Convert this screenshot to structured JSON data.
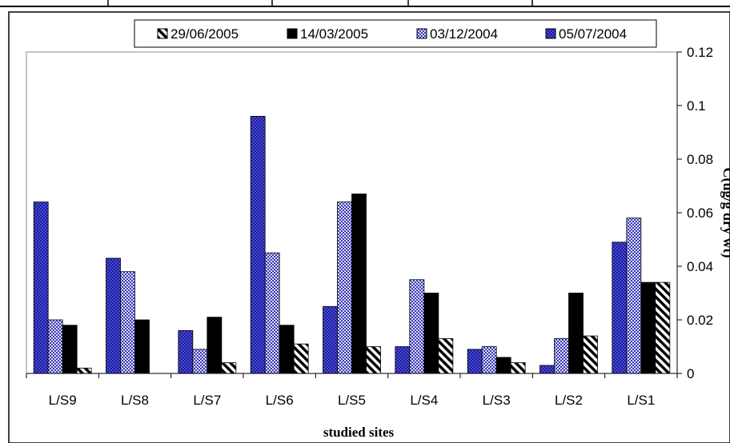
{
  "chart_data": {
    "type": "bar",
    "xlabel": "studied sites",
    "ylabel": "C(ug/g dry wt)",
    "ylim": [
      0,
      0.12
    ],
    "yticks": [
      "0",
      "0.02",
      "0.04",
      "0.06",
      "0.08",
      "0.1",
      "0.12"
    ],
    "categories": [
      "L/S9",
      "L/S8",
      "L/S7",
      "L/S6",
      "L/S5",
      "L/S4",
      "L/S3",
      "L/S2",
      "L/S1"
    ],
    "legend_position": "top",
    "legend_order": [
      "29/06/2005",
      "14/03/2005",
      "03/12/2004",
      "05/07/2004"
    ],
    "series": [
      {
        "name": "05/07/2004",
        "color": "#1a1a9e",
        "pattern": "dark-blue-checker",
        "values": [
          0.064,
          0.043,
          0.016,
          0.096,
          0.025,
          0.01,
          0.009,
          0.003,
          0.049
        ]
      },
      {
        "name": "03/12/2004",
        "color": "#4a4ac8",
        "pattern": "light-blue-checker",
        "values": [
          0.02,
          0.038,
          0.009,
          0.045,
          0.064,
          0.035,
          0.01,
          0.013,
          0.058
        ]
      },
      {
        "name": "14/03/2005",
        "color": "#000000",
        "pattern": "solid-black",
        "values": [
          0.018,
          0.02,
          0.021,
          0.018,
          0.067,
          0.03,
          0.006,
          0.03,
          0.034
        ]
      },
      {
        "name": "29/06/2005",
        "color": "#000000",
        "pattern": "diagonal-hatch",
        "values": [
          0.002,
          0.0,
          0.004,
          0.011,
          0.01,
          0.013,
          0.004,
          0.014,
          0.034
        ]
      }
    ]
  }
}
